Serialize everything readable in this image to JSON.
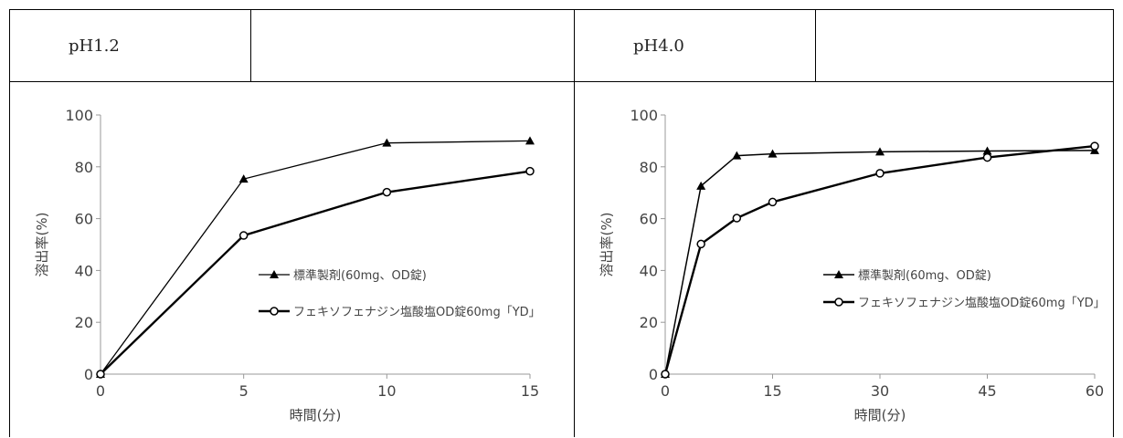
{
  "chart_data": [
    {
      "type": "line",
      "panel_label": "pH1.2",
      "xlabel": "時間(分)",
      "ylabel": "溶出率(%)",
      "xlim": [
        0,
        15
      ],
      "ylim": [
        0,
        100
      ],
      "xticks": [
        0,
        5,
        10,
        15
      ],
      "yticks": [
        0,
        20,
        40,
        60,
        80,
        100
      ],
      "grid": false,
      "legend_position": "middle-right",
      "series": [
        {
          "name": "標準製剤(60mg、OD錠)",
          "marker": "triangle-filled",
          "color": "#000000",
          "x": [
            0,
            5,
            10,
            15
          ],
          "y": [
            0,
            75.3,
            89.2,
            90.0
          ]
        },
        {
          "name": "フェキソフェナジン塩酸塩OD錠60mg「YD」",
          "marker": "circle-open",
          "color": "#000000",
          "x": [
            0,
            5,
            10,
            15
          ],
          "y": [
            0,
            53.5,
            70.2,
            78.3
          ]
        }
      ]
    },
    {
      "type": "line",
      "panel_label": "pH4.0",
      "xlabel": "時間(分)",
      "ylabel": "溶出率(%)",
      "xlim": [
        0,
        60
      ],
      "ylim": [
        0,
        100
      ],
      "xticks": [
        0,
        15,
        30,
        45,
        60
      ],
      "yticks": [
        0,
        20,
        40,
        60,
        80,
        100
      ],
      "grid": false,
      "legend_position": "middle-right",
      "series": [
        {
          "name": "標準製剤(60mg、OD錠)",
          "marker": "triangle-filled",
          "color": "#000000",
          "x": [
            0,
            5,
            10,
            15,
            30,
            45,
            60
          ],
          "y": [
            0,
            72.6,
            84.3,
            85.0,
            85.8,
            86.1,
            86.3
          ]
        },
        {
          "name": "フェキソフェナジン塩酸塩OD錠60mg「YD」",
          "marker": "circle-open",
          "color": "#000000",
          "x": [
            0,
            5,
            10,
            15,
            30,
            45,
            60
          ],
          "y": [
            0,
            50.2,
            60.2,
            66.4,
            77.5,
            83.6,
            88.0
          ]
        }
      ]
    }
  ]
}
